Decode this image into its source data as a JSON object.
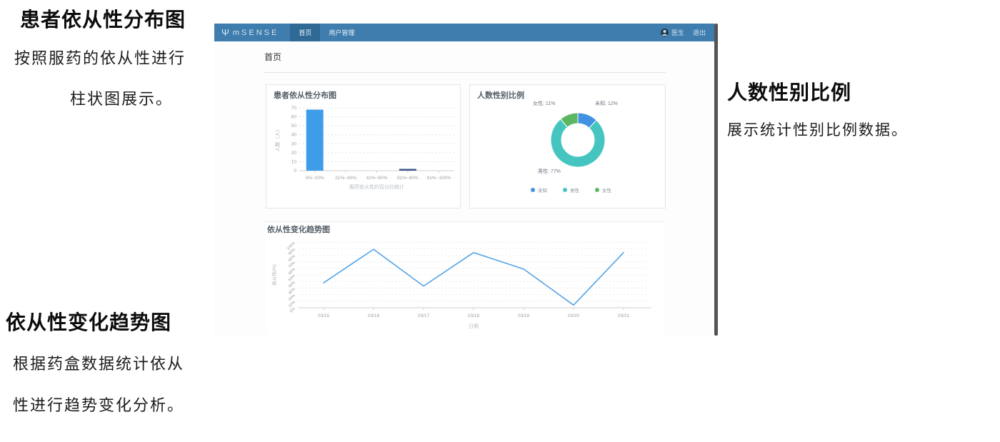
{
  "annotations": {
    "left_top": {
      "title": "患者依从性分布图",
      "line1": "按照服药的依从性进行",
      "line2": "柱状图展示。"
    },
    "left_bottom": {
      "title": "依从性变化趋势图",
      "line1": "根据药盒数据统计依从",
      "line2": "性进行趋势变化分析。"
    },
    "right_side": {
      "title": "人数性别比例",
      "line1": "展示统计性别比例数据。"
    }
  },
  "navbar": {
    "logo_text": "mSENSE",
    "tabs": [
      {
        "label": "首页",
        "active": true
      },
      {
        "label": "用户管理",
        "active": false
      }
    ],
    "user_label": "医生",
    "logout_label": "退出"
  },
  "page": {
    "heading": "首页"
  },
  "chart_data": [
    {
      "type": "bar",
      "title": "患者依从性分布图",
      "categories": [
        "0%~20%",
        "21%~40%",
        "41%~60%",
        "61%~80%",
        "81%~100%"
      ],
      "values": [
        68,
        0,
        0,
        2,
        0
      ],
      "bar_colors": [
        "#3f9ce8",
        "#3f9ce8",
        "#3f9ce8",
        "#44568c",
        "#3f9ce8"
      ],
      "xlabel": "服药依从性的百分比统计",
      "ylabel": "人数（人）",
      "ylim": [
        0,
        70
      ],
      "ytick_step": 10,
      "grid": true,
      "legend_position": "none"
    },
    {
      "type": "pie",
      "donut": true,
      "title": "人数性别比例",
      "slices": [
        {
          "label": "未知",
          "value": 12,
          "color": "#4192e3",
          "pct_label": "未知: 12%"
        },
        {
          "label": "男性",
          "value": 77,
          "color": "#45c5c0",
          "pct_label": "男性: 77%"
        },
        {
          "label": "女性",
          "value": 11,
          "color": "#5cb860",
          "pct_label": "女性: 11%"
        }
      ],
      "legend": [
        "未知",
        "男性",
        "女性"
      ],
      "legend_position": "bottom"
    },
    {
      "type": "line",
      "title": "依从性变化趋势图",
      "x": [
        "03/15",
        "03/16",
        "03/17",
        "03/18",
        "03/19",
        "03/20",
        "03/21"
      ],
      "values": [
        38,
        89,
        33,
        84,
        59,
        4,
        84
      ],
      "xlabel": "日期",
      "ylabel": "依从性(%)",
      "ylim": [
        0,
        100
      ],
      "yticks": [
        "0%",
        "10%",
        "20%",
        "30%",
        "40%",
        "50%",
        "60%",
        "70%",
        "80%",
        "90%",
        "100%"
      ],
      "line_color": "#54a3e4",
      "grid": true,
      "legend_position": "none"
    }
  ],
  "colors": {
    "navbar_bg": "#3e7dad",
    "navbar_active_tab": "#2f6a96",
    "accent_blue": "#3f9ce8",
    "scrollbar": "#545454"
  }
}
